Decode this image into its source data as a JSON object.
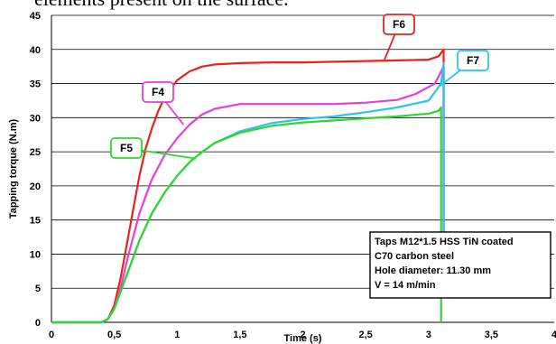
{
  "page_text": "elements present on the surface.",
  "chart_data": {
    "type": "line",
    "xlabel": "Time (s)",
    "ylabel": "Tapping torque (N.m)",
    "xlim": [
      0,
      4
    ],
    "ylim": [
      0,
      45
    ],
    "x_ticks": [
      "0",
      "0,5",
      "1",
      "1,5",
      "2",
      "2,5",
      "3",
      "3,5",
      "4"
    ],
    "y_ticks": [
      "0",
      "5",
      "10",
      "15",
      "20",
      "25",
      "30",
      "35",
      "40",
      "45"
    ],
    "grid": "horizontal",
    "series": [
      {
        "name": "F6",
        "color": "#e8231d",
        "x": [
          0,
          0.4,
          0.45,
          0.5,
          0.55,
          0.6,
          0.65,
          0.7,
          0.75,
          0.8,
          0.85,
          0.9,
          1.0,
          1.1,
          1.2,
          1.3,
          1.5,
          1.75,
          2.0,
          2.25,
          2.5,
          2.75,
          3.0,
          3.08,
          3.12,
          3.12
        ],
        "y": [
          0,
          0,
          0.5,
          2.5,
          6.5,
          11.5,
          16.5,
          21.5,
          25.5,
          28.5,
          31,
          33,
          35.5,
          36.8,
          37.5,
          37.8,
          38,
          38.1,
          38.1,
          38.2,
          38.3,
          38.4,
          38.5,
          39,
          40,
          7
        ]
      },
      {
        "name": "F4",
        "color": "#e83fd0",
        "x": [
          0,
          0.4,
          0.45,
          0.5,
          0.55,
          0.6,
          0.7,
          0.8,
          0.9,
          1.0,
          1.1,
          1.2,
          1.3,
          1.5,
          1.75,
          2.0,
          2.25,
          2.5,
          2.75,
          2.9,
          3.05,
          3.12,
          3.12
        ],
        "y": [
          0,
          0,
          0.5,
          2,
          5,
          9,
          16,
          21,
          24.5,
          27,
          29,
          30.5,
          31.3,
          32,
          32,
          32,
          32,
          32.2,
          32.6,
          33.5,
          35,
          37.5,
          7
        ]
      },
      {
        "name": "F7",
        "color": "#29c5f0",
        "x": [
          0,
          0.4,
          0.45,
          0.5,
          0.6,
          0.7,
          0.8,
          0.9,
          1.0,
          1.1,
          1.2,
          1.3,
          1.5,
          1.75,
          2.0,
          2.25,
          2.5,
          2.75,
          3.0,
          3.1,
          3.12,
          3.12
        ],
        "y": [
          0,
          0,
          0.5,
          2,
          7,
          12,
          16,
          19,
          21.5,
          23.5,
          25,
          26.3,
          28,
          29.2,
          29.8,
          30.2,
          30.8,
          31.5,
          32.5,
          35,
          38,
          7
        ]
      },
      {
        "name": "F5",
        "color": "#2fd62f",
        "x": [
          0,
          0.4,
          0.45,
          0.5,
          0.6,
          0.7,
          0.8,
          0.9,
          1.0,
          1.1,
          1.2,
          1.3,
          1.5,
          1.75,
          2.0,
          2.25,
          2.5,
          2.75,
          3.0,
          3.08,
          3.1,
          3.1
        ],
        "y": [
          0,
          0,
          0.5,
          2,
          7,
          12,
          16,
          19,
          21.5,
          23.5,
          25,
          26.3,
          27.8,
          28.8,
          29.3,
          29.6,
          29.9,
          30.2,
          30.6,
          31,
          31.5,
          0
        ]
      }
    ],
    "annotations": [
      "F6",
      "F4",
      "F7",
      "F5"
    ],
    "info_box": [
      "Taps M12*1.5 HSS TiN coated",
      "C70 carbon steel",
      "Hole diameter: 11.30 mm",
      "V = 14 m/min"
    ]
  }
}
